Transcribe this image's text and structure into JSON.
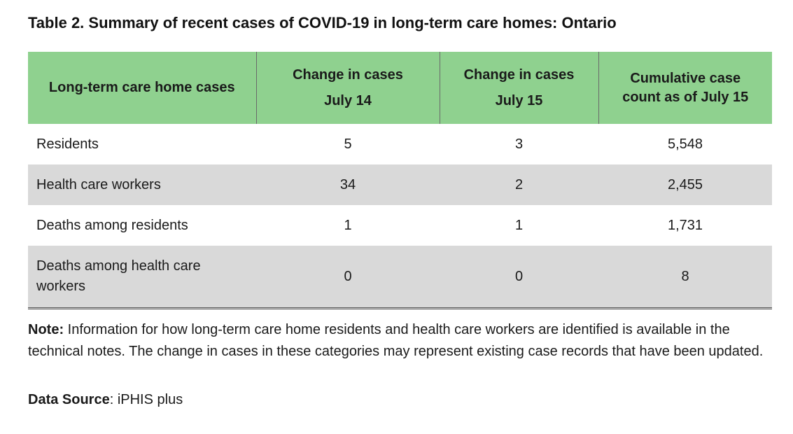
{
  "title": "Table 2. Summary of recent cases of COVID-19 in long-term care homes: Ontario",
  "table": {
    "headers": {
      "col1": "Long-term care home cases",
      "col2_line1": "Change in cases",
      "col2_line2": "July 14",
      "col3_line1": "Change in cases",
      "col3_line2": "July 15",
      "col4_line1": "Cumulative case",
      "col4_line2": "count as of July 15"
    },
    "rows": [
      {
        "label": "Residents",
        "july14": "5",
        "july15": "3",
        "cumulative": "5,548"
      },
      {
        "label": "Health care workers",
        "july14": "34",
        "july15": "2",
        "cumulative": "2,455"
      },
      {
        "label": "Deaths among residents",
        "july14": "1",
        "july15": "1",
        "cumulative": "1,731"
      },
      {
        "label": "Deaths among health care workers",
        "july14": "0",
        "july15": "0",
        "cumulative": "8"
      }
    ],
    "shade_color": "#d9d9d9",
    "header_color": "#8fd18f"
  },
  "note": {
    "label": "Note:",
    "text": " Information for how long-term care home residents and health care workers are identified is available in the technical notes. The change in cases in these categories may represent existing case records that have been updated."
  },
  "source": {
    "label": "Data Source",
    "text": ": iPHIS plus"
  }
}
